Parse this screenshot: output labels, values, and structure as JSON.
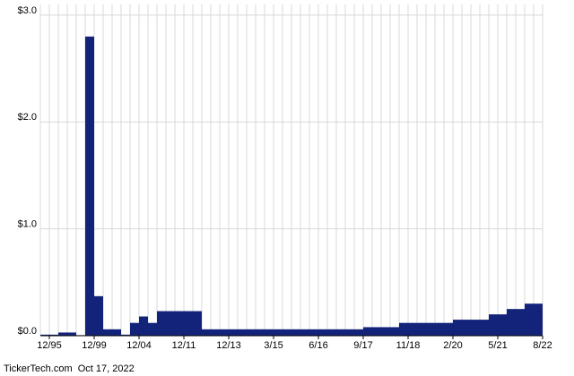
{
  "chart_data": {
    "type": "bar",
    "categories": [
      "12/95",
      null,
      null,
      null,
      null,
      "12/99",
      null,
      null,
      null,
      null,
      "12/04",
      null,
      null,
      null,
      null,
      "12/11",
      null,
      null,
      null,
      null,
      "12/13",
      null,
      null,
      null,
      null,
      "3/15",
      null,
      null,
      null,
      null,
      "6/16",
      null,
      null,
      null,
      null,
      "9/17",
      null,
      null,
      null,
      null,
      "11/18",
      null,
      null,
      null,
      null,
      "2/20",
      null,
      null,
      null,
      null,
      "5/21",
      null,
      null,
      null,
      null,
      "8/22"
    ],
    "values": [
      0.01,
      0.01,
      0.03,
      0.03,
      0.005,
      2.8,
      0.37,
      0.06,
      0.06,
      0.01,
      0.12,
      0.18,
      0.12,
      0.23,
      0.23,
      0.23,
      0.23,
      0.23,
      0.06,
      0.06,
      0.06,
      0.06,
      0.06,
      0.06,
      0.06,
      0.06,
      0.06,
      0.06,
      0.06,
      0.06,
      0.06,
      0.06,
      0.06,
      0.06,
      0.06,
      0.06,
      0.08,
      0.08,
      0.08,
      0.08,
      0.12,
      0.12,
      0.12,
      0.12,
      0.12,
      0.12,
      0.15,
      0.15,
      0.15,
      0.15,
      0.2,
      0.2,
      0.25,
      0.25,
      0.3,
      0.3
    ],
    "color": "#14237a",
    "ylim": [
      0,
      3.1
    ],
    "yticks": [
      {
        "value": 0,
        "label": "$0.0"
      },
      {
        "value": 1,
        "label": "$1.0"
      },
      {
        "value": 2,
        "label": "$2.0"
      },
      {
        "value": 3,
        "label": "$3.0"
      }
    ],
    "grid": true,
    "footer": "TickerTech.com  Oct 17, 2022"
  }
}
